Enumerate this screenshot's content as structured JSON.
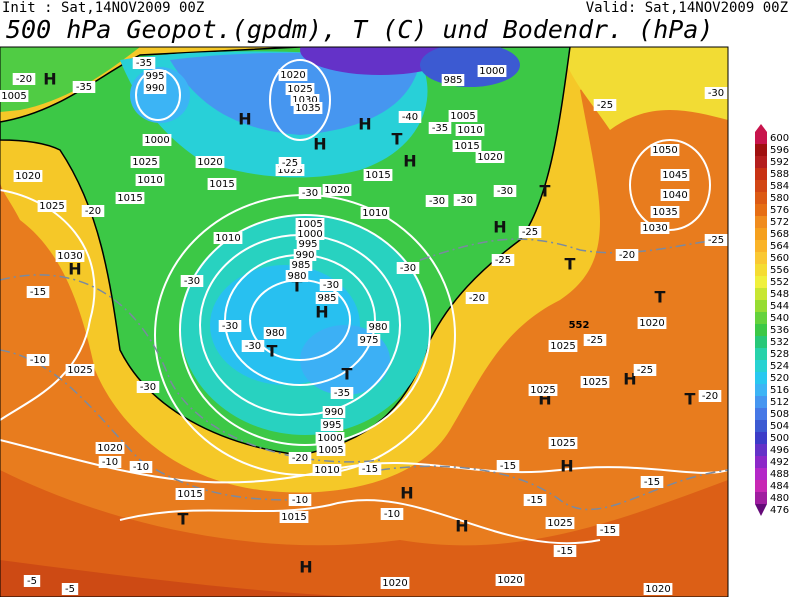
{
  "header": {
    "init": "Init : Sat,14NOV2009 00Z",
    "valid": "Valid: Sat,14NOV2009 00Z",
    "title": "500 hPa Geopot.(gpdm), T (C) und Bodendr. (hPa)"
  },
  "colorbar": {
    "ticks": [
      600,
      596,
      592,
      588,
      584,
      580,
      576,
      572,
      568,
      564,
      560,
      556,
      552,
      548,
      544,
      540,
      536,
      532,
      528,
      524,
      520,
      516,
      512,
      508,
      504,
      500,
      496,
      492,
      488,
      484,
      480,
      476
    ],
    "colors": [
      "#c8144c",
      "#a01010",
      "#b41e1e",
      "#c83214",
      "#d24614",
      "#dc5a14",
      "#e66e14",
      "#f08c1e",
      "#f5a01e",
      "#fab428",
      "#fac832",
      "#f5dc32",
      "#f0f03c",
      "#c8e632",
      "#96dc32",
      "#64d23c",
      "#3cc846",
      "#28c878",
      "#28d2aa",
      "#28d2d2",
      "#28c8f0",
      "#3cb4f5",
      "#4696f0",
      "#4678e6",
      "#3c5ad2",
      "#3c3cc8",
      "#6432c8",
      "#8c28c8",
      "#b428c8",
      "#c828b4",
      "#a01ea0",
      "#640a78"
    ]
  },
  "map_labels": {
    "pressure_centers": [
      "H",
      "H",
      "H",
      "H",
      "T",
      "H",
      "T",
      "H",
      "T",
      "H",
      "T",
      "H",
      "T",
      "T",
      "T",
      "H",
      "H",
      "T",
      "H",
      "H",
      "H",
      "T",
      "H"
    ],
    "isobars": [
      1005,
      995,
      990,
      1000,
      1025,
      1010,
      1015,
      1020,
      1020,
      1025,
      1030,
      1035,
      1020,
      1025,
      1015,
      1020,
      1015,
      1010,
      1010,
      985,
      1000,
      1005,
      1010,
      1015,
      1020,
      1025,
      1030,
      1005,
      1000,
      995,
      990,
      985,
      980,
      985,
      980,
      975,
      980,
      1025,
      1020,
      1015,
      1010,
      1005,
      1000,
      995,
      990,
      1015,
      1025,
      1025,
      1025,
      1025,
      1025,
      1020,
      1030,
      1035,
      1040,
      1045,
      1050,
      1020,
      1020,
      1020
    ],
    "temperatures": [
      -20,
      -35,
      -35,
      -40,
      -35,
      -25,
      -30,
      -30,
      -30,
      -30,
      -25,
      -25,
      -30,
      -20,
      -15,
      -10,
      -30,
      -30,
      -30,
      -30,
      -30,
      -25,
      -20,
      -30,
      -35,
      -25,
      -25,
      -20,
      -25,
      -20,
      -10,
      -10,
      -20,
      -15,
      -15,
      -15,
      -15,
      -15,
      -15,
      -10,
      -10,
      -5,
      -5
    ],
    "contour_552": 552
  }
}
